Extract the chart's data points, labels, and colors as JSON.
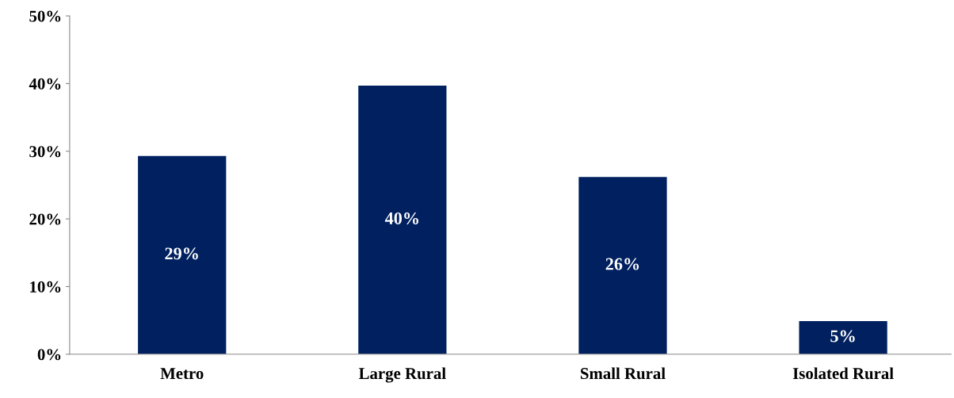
{
  "chart_data": {
    "type": "bar",
    "categories": [
      "Metro",
      "Large Rural",
      "Small Rural",
      "Isolated Rural"
    ],
    "values": [
      29.3,
      39.7,
      26.2,
      4.9
    ],
    "value_labels": [
      "29%",
      "40%",
      "26%",
      "5%"
    ],
    "color": "#002060",
    "ylim": [
      0,
      50
    ],
    "yticks": [
      {
        "value": 0,
        "label": "0%"
      },
      {
        "value": 10,
        "label": "10%"
      },
      {
        "value": 20,
        "label": "20%"
      },
      {
        "value": 30,
        "label": "30%"
      },
      {
        "value": 40,
        "label": "40%"
      },
      {
        "value": 50,
        "label": "50%"
      }
    ],
    "grid": false
  }
}
